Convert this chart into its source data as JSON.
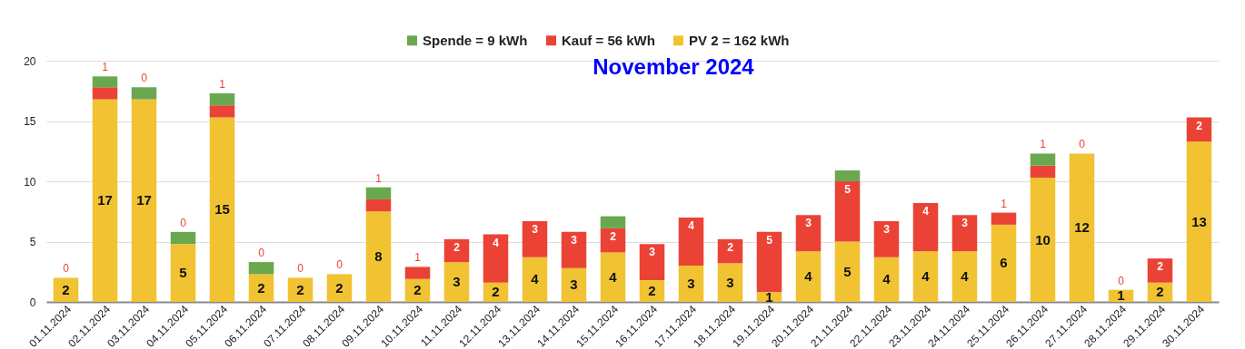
{
  "chart_data": {
    "type": "bar",
    "title": "November 2024",
    "stacked": true,
    "categories": [
      "01.11.2024",
      "02.11.2024",
      "03.11.2024",
      "04.11.2024",
      "05.11.2024",
      "06.11.2024",
      "07.11.2024",
      "08.11.2024",
      "09.11.2024",
      "10.11.2024",
      "11.11.2024",
      "12.11.2024",
      "13.11.2024",
      "14.11.2024",
      "15.11.2024",
      "16.11.2024",
      "17.11.2024",
      "18.11.2024",
      "19.11.2024",
      "20.11.2024",
      "21.11.2024",
      "22.11.2024",
      "23.11.2024",
      "24.11.2024",
      "25.11.2024",
      "26.11.2024",
      "27.11.2024",
      "28.11.2024",
      "29.11.2024",
      "30.11.2024"
    ],
    "series": [
      {
        "name": "PV 2 = 162 kWh",
        "color": "#f1c232",
        "values": [
          2.0,
          16.8,
          16.8,
          4.8,
          15.3,
          2.3,
          2.0,
          2.3,
          7.5,
          1.9,
          3.3,
          1.6,
          3.7,
          2.8,
          4.1,
          1.8,
          3.0,
          3.2,
          0.8,
          4.2,
          5.0,
          3.7,
          4.2,
          4.2,
          6.4,
          10.3,
          12.3,
          1.0,
          1.6,
          13.3
        ],
        "value_labels": [
          "2",
          "17",
          "17",
          "5",
          "15",
          "2",
          "2",
          "2",
          "8",
          "2",
          "3",
          "2",
          "4",
          "3",
          "4",
          "2",
          "3",
          "3",
          "1",
          "4",
          "5",
          "4",
          "4",
          "4",
          "6",
          "10",
          "12",
          "1",
          "2",
          "13"
        ]
      },
      {
        "name": "Kauf = 56 kWh",
        "color": "#ea4335",
        "values": [
          0,
          1.0,
          0,
          0,
          1.0,
          0,
          0,
          0,
          1.0,
          1.0,
          1.9,
          4.0,
          3.0,
          3.0,
          2.0,
          3.0,
          4.0,
          2.0,
          5.0,
          3.0,
          5.0,
          3.0,
          4.0,
          3.0,
          1.0,
          1.0,
          0,
          0,
          2.0,
          2.0
        ],
        "value_labels": [
          "0",
          "1",
          "0",
          "0",
          "1",
          "0",
          "0",
          "0",
          "1",
          "1",
          "2",
          "4",
          "3",
          "3",
          "2",
          "3",
          "4",
          "2",
          "5",
          "3",
          "5",
          "3",
          "4",
          "3",
          "1",
          "1",
          "0",
          "0",
          "2",
          "2"
        ]
      },
      {
        "name": "Spende = 9 kWh",
        "color": "#6aa84f",
        "values": [
          0,
          0.9,
          1.0,
          1.0,
          1.0,
          1.0,
          0,
          0,
          1.0,
          0,
          0,
          0,
          0,
          0,
          1.0,
          0,
          0,
          0,
          0,
          0,
          0.9,
          0,
          0,
          0,
          0,
          1.0,
          0,
          0,
          0,
          0
        ]
      }
    ],
    "ylim": [
      0,
      20
    ],
    "yticks": [
      0,
      5,
      10,
      15,
      20
    ],
    "grid": "y",
    "legend": "top"
  }
}
